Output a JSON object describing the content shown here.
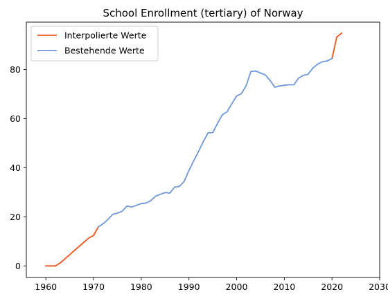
{
  "chart_data": {
    "type": "line",
    "title": "School Enrollment (tertiary) of Norway",
    "xlabel": "",
    "ylabel": "",
    "xlim": [
      1955.9,
      2030
    ],
    "ylim": [
      -4.7,
      99.3
    ],
    "x_ticks": [
      1960,
      1970,
      1980,
      1990,
      2000,
      2010,
      2020,
      2030
    ],
    "y_ticks": [
      0,
      20,
      40,
      60,
      80
    ],
    "grid": false,
    "legend_position": "top-left",
    "series": [
      {
        "name": "Interpolierte Werte",
        "color": "#f0521c",
        "x": [
          1960,
          1961,
          1962,
          1963,
          1964,
          1965,
          1966,
          1967,
          1968,
          1969,
          1970,
          1971,
          2020,
          2021,
          2022
        ],
        "y": [
          0,
          0,
          0,
          1.2,
          2.9,
          4.6,
          6.3,
          8.0,
          9.7,
          11.4,
          12.4,
          15.9,
          84.5,
          93.2,
          94.8
        ]
      },
      {
        "name": "Bestehende Werte",
        "color": "#6d97d9",
        "x": [
          1971,
          1972,
          1973,
          1974,
          1975,
          1976,
          1977,
          1978,
          1979,
          1980,
          1981,
          1982,
          1983,
          1984,
          1985,
          1986,
          1987,
          1988,
          1989,
          1990,
          1991,
          1992,
          1993,
          1994,
          1995,
          1996,
          1997,
          1998,
          1999,
          2000,
          2001,
          2002,
          2003,
          2004,
          2005,
          2006,
          2007,
          2008,
          2009,
          2010,
          2011,
          2012,
          2013,
          2014,
          2015,
          2016,
          2017,
          2018,
          2019,
          2020
        ],
        "y": [
          15.9,
          17.2,
          18.9,
          21.0,
          21.5,
          22.3,
          24.4,
          24.0,
          24.7,
          25.4,
          25.6,
          26.6,
          28.4,
          29.2,
          29.9,
          29.7,
          32.1,
          32.4,
          34.4,
          38.9,
          42.8,
          46.6,
          50.6,
          54.2,
          54.3,
          58.1,
          61.6,
          62.8,
          66.1,
          69.2,
          70.2,
          73.4,
          79.2,
          79.4,
          78.6,
          77.8,
          75.6,
          72.8,
          73.3,
          73.6,
          73.8,
          73.8,
          76.5,
          77.6,
          78.1,
          80.6,
          82.2,
          83.2,
          83.5,
          84.5
        ]
      }
    ]
  }
}
